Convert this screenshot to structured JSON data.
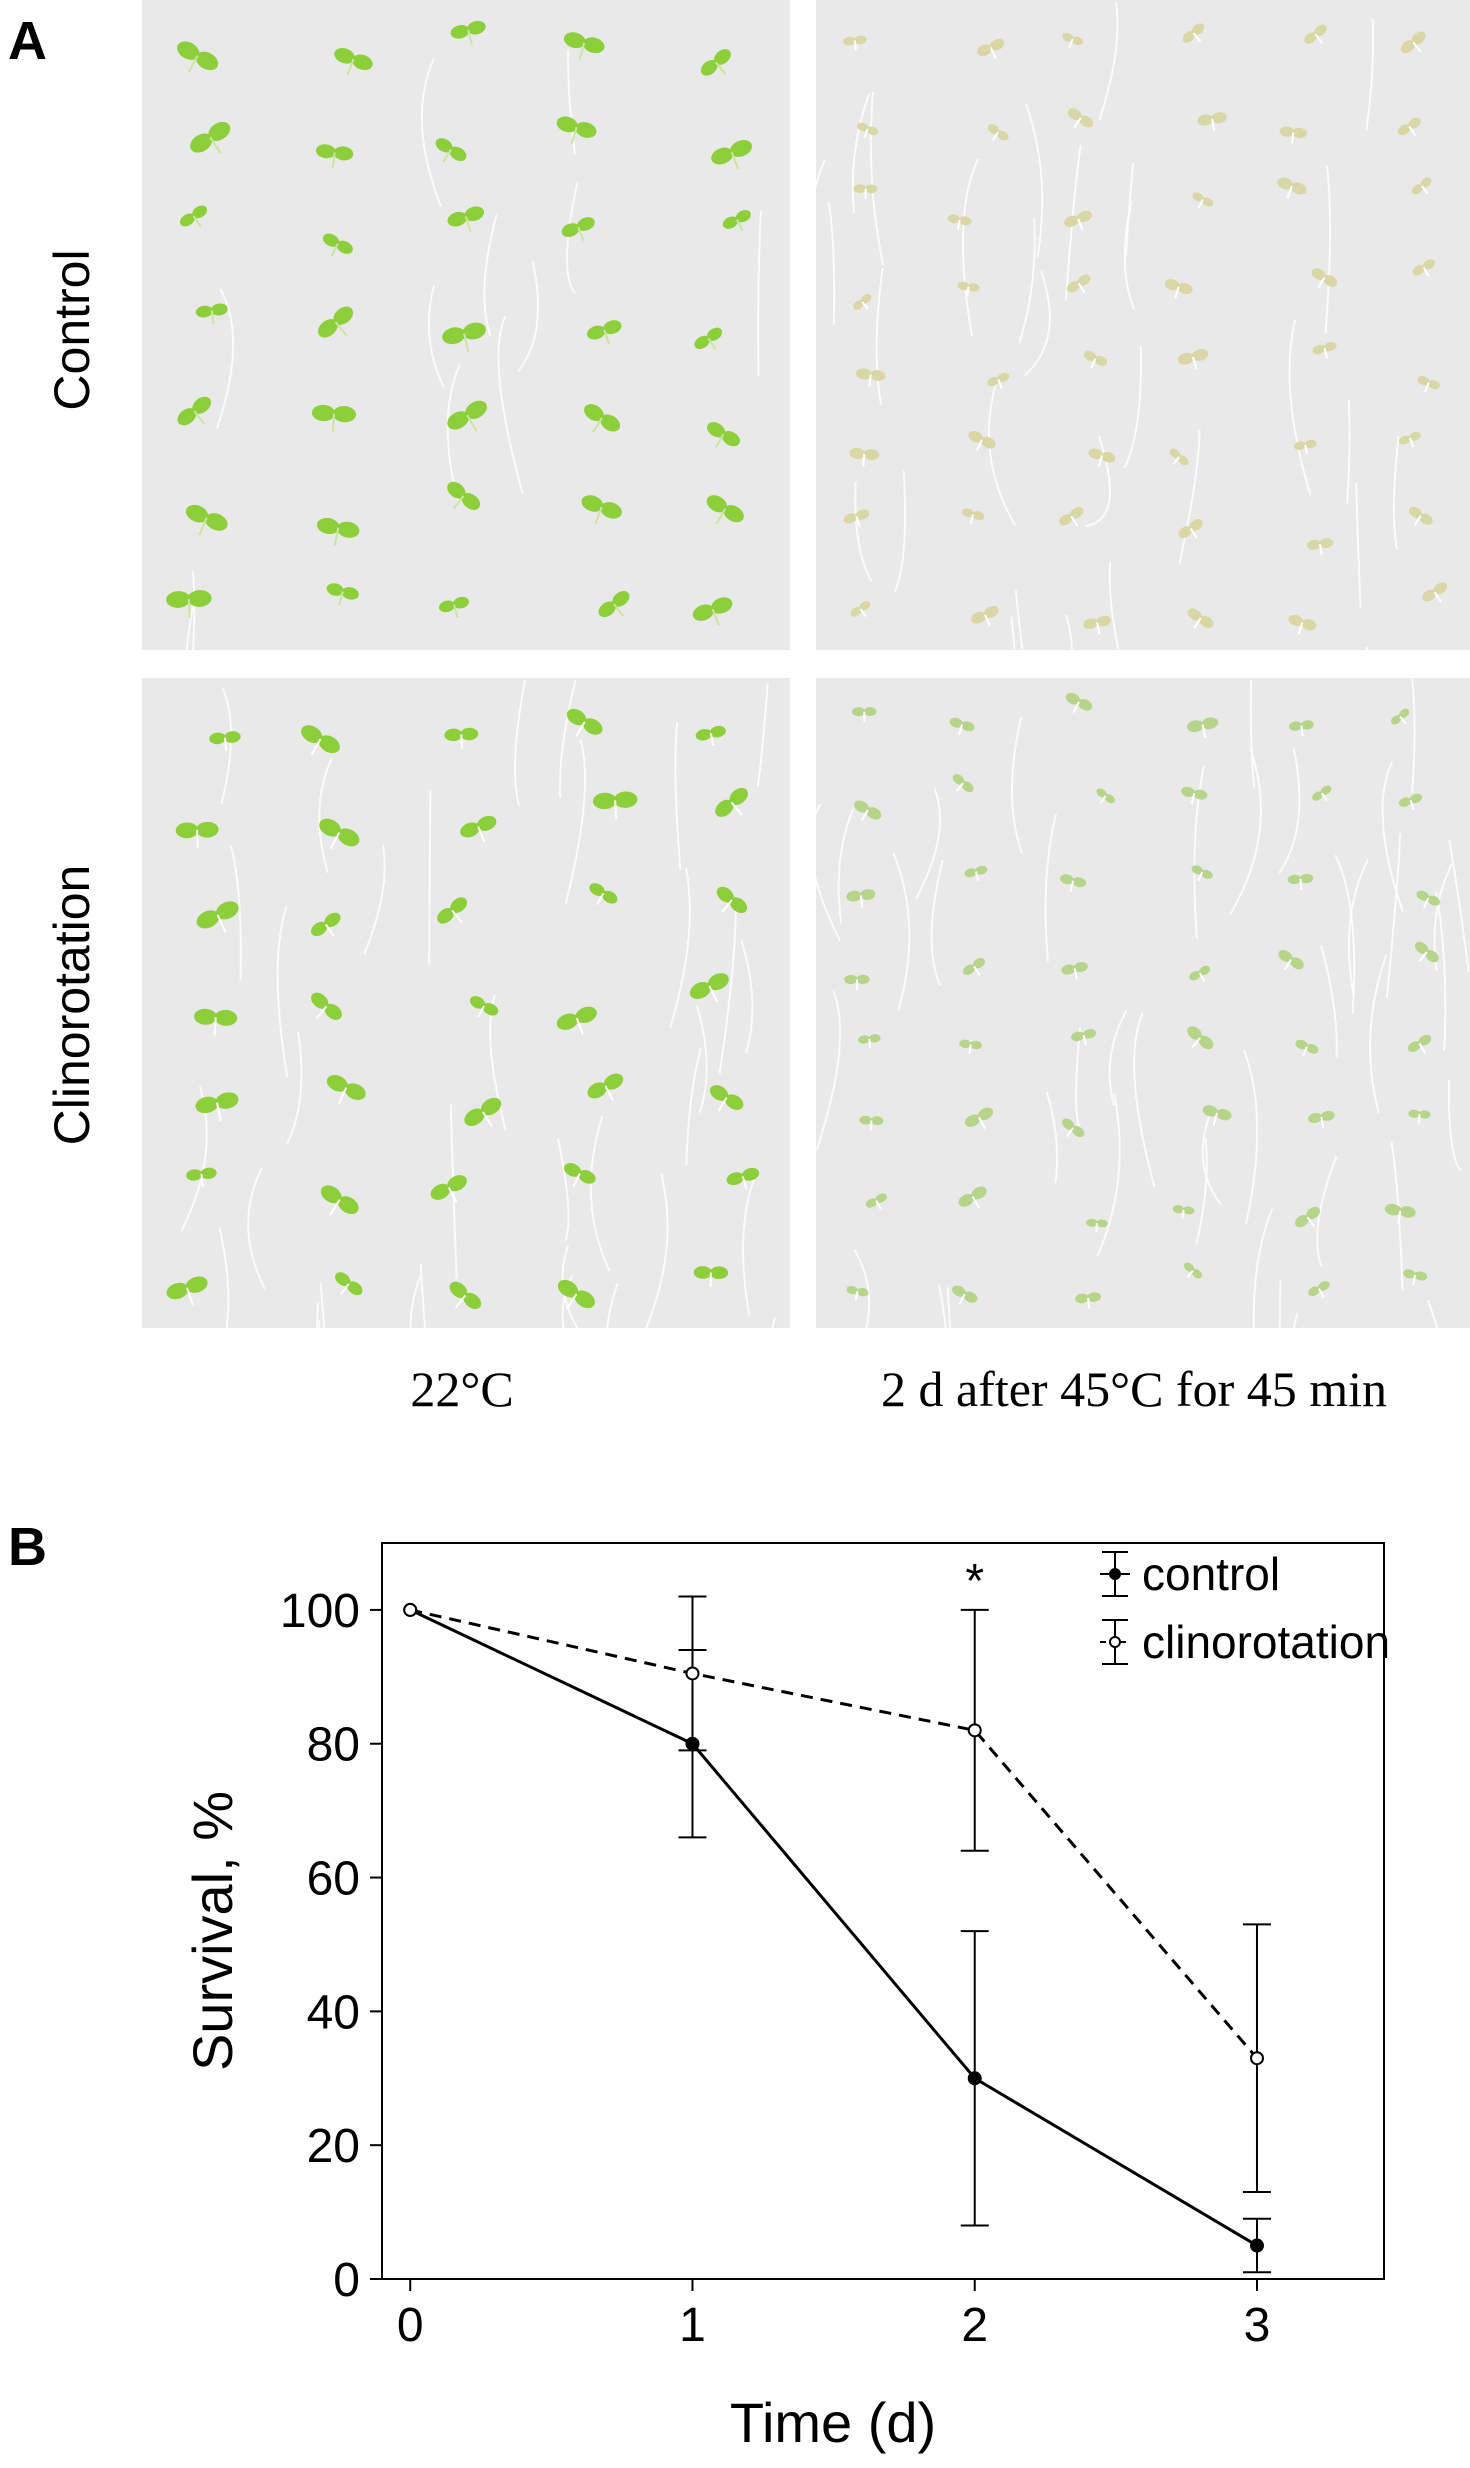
{
  "panels": {
    "a_letter": "A",
    "b_letter": "B"
  },
  "panel_a": {
    "rows": [
      "Control",
      "Clinorotation"
    ],
    "columns": [
      "22°C",
      "2 d after 45°C for 45 min"
    ],
    "colors": {
      "healthy_seedling": "#8ccf3a",
      "damaged_seedling": "#d9d7a6",
      "agar_background": "#ececec",
      "agar_background_2": "#e4e4e4"
    }
  },
  "chart_data": {
    "type": "line",
    "xlabel": "Time (d)",
    "ylabel": "Survival, %",
    "x": [
      0,
      1,
      2,
      3
    ],
    "xticks": [
      0,
      1,
      2,
      3
    ],
    "yticks": [
      0,
      20,
      40,
      60,
      80,
      100
    ],
    "xlim": [
      -0.1,
      3.45
    ],
    "ylim": [
      0,
      110
    ],
    "series": [
      {
        "name": "control",
        "values": [
          100,
          80,
          30,
          5
        ],
        "error": [
          0,
          14,
          22,
          4
        ],
        "line_style": "solid",
        "marker": "filled-circle"
      },
      {
        "name": "clinorotation",
        "values": [
          100,
          90.5,
          82,
          33
        ],
        "error": [
          0,
          11.5,
          18,
          20
        ],
        "line_style": "dashed",
        "marker": "open-circle"
      }
    ],
    "annotations": [
      {
        "text": "*",
        "x": 2,
        "y": 104
      }
    ],
    "legend_position": "top-right",
    "grid": false
  }
}
